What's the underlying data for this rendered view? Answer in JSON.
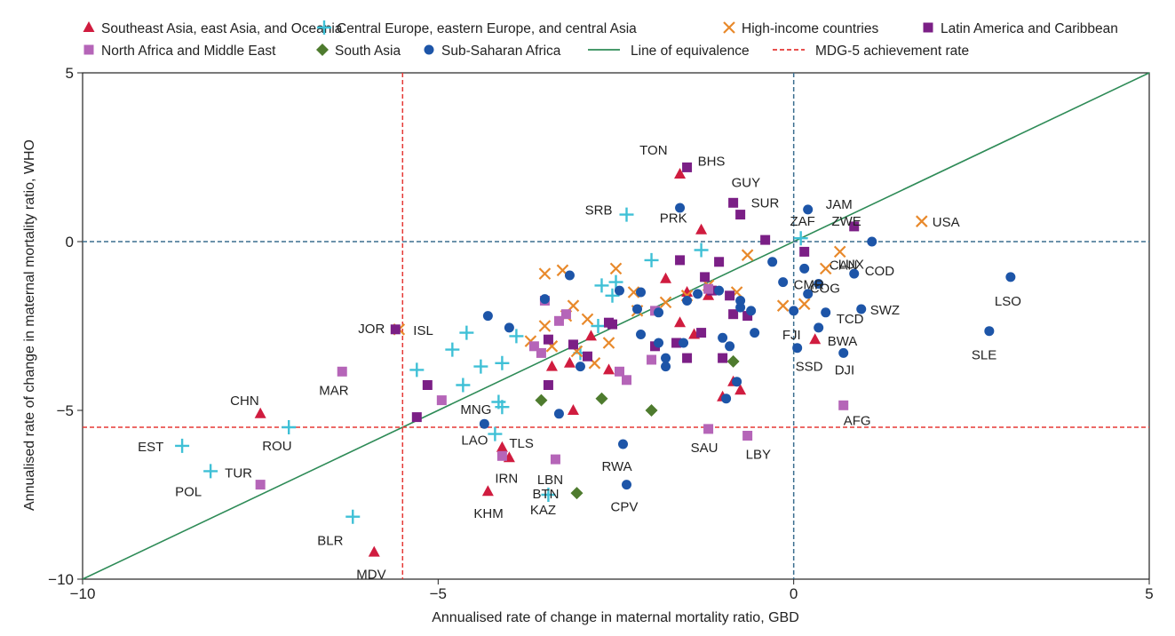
{
  "chart_data": {
    "type": "scatter",
    "xlabel": "Annualised rate of change in maternal mortality ratio, GBD",
    "ylabel": "Annualised rate of change in maternal mortality ratio, WHO",
    "xlim": [
      -10,
      5
    ],
    "ylim": [
      -10,
      5
    ],
    "x_ticks": [
      "−10",
      "−5",
      "0",
      "5"
    ],
    "y_ticks": [
      "−10",
      "−5",
      "0",
      "5"
    ],
    "grid": false,
    "legend_position": "top",
    "reference_lines": [
      {
        "name": "Line of equivalence",
        "kind": "diagonal",
        "color": "#2e8b57",
        "style": "solid"
      },
      {
        "name": "MDG-5 achievement rate",
        "kind": "vline",
        "x": -5.5,
        "color": "#e53935",
        "style": "dashed"
      },
      {
        "name": "MDG-5 achievement rate",
        "kind": "hline",
        "y": -5.5,
        "color": "#e53935",
        "style": "dashed"
      },
      {
        "name": "",
        "kind": "vline",
        "x": 0,
        "color": "#3b6e8f",
        "style": "dashed"
      },
      {
        "name": "",
        "kind": "hline",
        "y": 0,
        "color": "#3b6e8f",
        "style": "dashed"
      }
    ],
    "series": [
      {
        "name": "Southeast Asia, east Asia, and Oceania",
        "marker": "triangle",
        "color": "#d01c3f",
        "points": [
          {
            "x": -1.6,
            "y": 2.0,
            "label": "TON"
          },
          {
            "x": -1.3,
            "y": 0.35,
            "label": "PRK"
          },
          {
            "x": -7.5,
            "y": -5.1,
            "label": "CHN"
          },
          {
            "x": -5.9,
            "y": -9.2,
            "label": "MDV"
          },
          {
            "x": -4.3,
            "y": -7.4,
            "label": "KHM"
          },
          {
            "x": -4.1,
            "y": -6.1,
            "label": "TLS"
          },
          {
            "x": 0.3,
            "y": -2.9,
            "label": "FJI"
          },
          {
            "x": -3.4,
            "y": -3.7,
            "label": ""
          },
          {
            "x": -3.15,
            "y": -3.6,
            "label": ""
          },
          {
            "x": -3.1,
            "y": -5.0,
            "label": ""
          },
          {
            "x": -4.0,
            "y": -6.4,
            "label": ""
          },
          {
            "x": -1.8,
            "y": -1.1,
            "label": ""
          },
          {
            "x": -1.2,
            "y": -1.6,
            "label": ""
          },
          {
            "x": -1.6,
            "y": -2.4,
            "label": ""
          },
          {
            "x": -1.4,
            "y": -2.75,
            "label": ""
          },
          {
            "x": -2.6,
            "y": -3.8,
            "label": ""
          },
          {
            "x": -2.85,
            "y": -2.8,
            "label": ""
          },
          {
            "x": -0.85,
            "y": -4.15,
            "label": ""
          },
          {
            "x": -0.75,
            "y": -4.4,
            "label": ""
          },
          {
            "x": -1.0,
            "y": -4.6,
            "label": ""
          },
          {
            "x": -1.5,
            "y": -1.5,
            "label": ""
          }
        ]
      },
      {
        "name": "Central Europe, eastern Europe, and central Asia",
        "marker": "plus",
        "color": "#3fc0d6",
        "points": [
          {
            "x": -8.6,
            "y": -6.05,
            "label": "EST"
          },
          {
            "x": -8.2,
            "y": -6.8,
            "label": "POL"
          },
          {
            "x": -7.1,
            "y": -5.5,
            "label": "ROU"
          },
          {
            "x": -6.2,
            "y": -8.15,
            "label": "BLR"
          },
          {
            "x": -2.35,
            "y": 0.8,
            "label": "SRB"
          },
          {
            "x": -4.1,
            "y": -4.9,
            "label": "MNG"
          },
          {
            "x": -4.2,
            "y": -5.7,
            "label": "LAO"
          },
          {
            "x": -3.45,
            "y": -7.5,
            "label": "KAZ"
          },
          {
            "x": 0.1,
            "y": 0.1,
            "label": "ZAF"
          },
          {
            "x": -5.3,
            "y": -3.8,
            "label": ""
          },
          {
            "x": -4.8,
            "y": -3.2,
            "label": ""
          },
          {
            "x": -4.6,
            "y": -2.7,
            "label": ""
          },
          {
            "x": -4.4,
            "y": -3.7,
            "label": ""
          },
          {
            "x": -4.65,
            "y": -4.25,
            "label": ""
          },
          {
            "x": -4.1,
            "y": -3.6,
            "label": ""
          },
          {
            "x": -4.15,
            "y": -4.75,
            "label": ""
          },
          {
            "x": -3.9,
            "y": -2.8,
            "label": ""
          },
          {
            "x": -2.7,
            "y": -1.3,
            "label": ""
          },
          {
            "x": -2.55,
            "y": -1.6,
            "label": ""
          },
          {
            "x": -2.5,
            "y": -1.2,
            "label": ""
          },
          {
            "x": -2.0,
            "y": -0.55,
            "label": ""
          },
          {
            "x": -1.3,
            "y": -0.25,
            "label": ""
          },
          {
            "x": -2.75,
            "y": -2.5,
            "label": ""
          },
          {
            "x": -3.0,
            "y": -3.3,
            "label": ""
          }
        ]
      },
      {
        "name": "High-income countries",
        "marker": "x",
        "color": "#e8892b",
        "points": [
          {
            "x": -5.55,
            "y": -2.6,
            "label": "ISL"
          },
          {
            "x": 1.8,
            "y": 0.6,
            "label": "USA"
          },
          {
            "x": 0.65,
            "y": -0.3,
            "label": "CAN"
          },
          {
            "x": 0.45,
            "y": -0.8,
            "label": "LUX"
          },
          {
            "x": -3.5,
            "y": -0.95,
            "label": ""
          },
          {
            "x": -3.25,
            "y": -0.85,
            "label": ""
          },
          {
            "x": -2.5,
            "y": -0.8,
            "label": ""
          },
          {
            "x": -3.1,
            "y": -1.9,
            "label": ""
          },
          {
            "x": -3.5,
            "y": -2.5,
            "label": ""
          },
          {
            "x": -3.2,
            "y": -2.2,
            "label": ""
          },
          {
            "x": -2.9,
            "y": -2.3,
            "label": ""
          },
          {
            "x": -3.7,
            "y": -2.95,
            "label": ""
          },
          {
            "x": -3.4,
            "y": -3.1,
            "label": ""
          },
          {
            "x": -3.05,
            "y": -3.25,
            "label": ""
          },
          {
            "x": -2.6,
            "y": -3.0,
            "label": ""
          },
          {
            "x": -2.8,
            "y": -3.6,
            "label": ""
          },
          {
            "x": -2.25,
            "y": -1.5,
            "label": ""
          },
          {
            "x": -2.2,
            "y": -2.05,
            "label": ""
          },
          {
            "x": -1.8,
            "y": -1.8,
            "label": ""
          },
          {
            "x": -1.5,
            "y": -1.6,
            "label": ""
          },
          {
            "x": -1.2,
            "y": -1.3,
            "label": ""
          },
          {
            "x": -0.65,
            "y": -0.4,
            "label": ""
          },
          {
            "x": -0.15,
            "y": -1.9,
            "label": ""
          },
          {
            "x": 0.15,
            "y": -1.85,
            "label": ""
          },
          {
            "x": -0.8,
            "y": -1.5,
            "label": ""
          }
        ]
      },
      {
        "name": "Latin America and Caribbean",
        "marker": "square",
        "color": "#7b1f86",
        "points": [
          {
            "x": -1.5,
            "y": 2.2,
            "label": "BHS"
          },
          {
            "x": -0.85,
            "y": 1.15,
            "label": "GUY"
          },
          {
            "x": -0.75,
            "y": 0.8,
            "label": "SUR"
          },
          {
            "x": 0.85,
            "y": 0.45,
            "label": "JAM"
          },
          {
            "x": -5.15,
            "y": -4.25,
            "label": ""
          },
          {
            "x": -5.6,
            "y": -2.6,
            "label": ""
          },
          {
            "x": -5.3,
            "y": -5.2,
            "label": ""
          },
          {
            "x": -3.45,
            "y": -2.9,
            "label": ""
          },
          {
            "x": -3.45,
            "y": -4.25,
            "label": ""
          },
          {
            "x": -3.1,
            "y": -3.05,
            "label": ""
          },
          {
            "x": -2.9,
            "y": -3.4,
            "label": ""
          },
          {
            "x": -2.55,
            "y": -2.45,
            "label": ""
          },
          {
            "x": -2.6,
            "y": -2.4,
            "label": ""
          },
          {
            "x": -1.95,
            "y": -3.1,
            "label": ""
          },
          {
            "x": -1.65,
            "y": -3.0,
            "label": ""
          },
          {
            "x": -1.5,
            "y": -3.45,
            "label": ""
          },
          {
            "x": -1.6,
            "y": -0.55,
            "label": ""
          },
          {
            "x": -1.25,
            "y": -1.05,
            "label": ""
          },
          {
            "x": -1.15,
            "y": -1.45,
            "label": ""
          },
          {
            "x": -1.05,
            "y": -0.6,
            "label": ""
          },
          {
            "x": -0.9,
            "y": -1.6,
            "label": ""
          },
          {
            "x": -0.85,
            "y": -2.15,
            "label": ""
          },
          {
            "x": -0.65,
            "y": -2.2,
            "label": ""
          },
          {
            "x": -1.0,
            "y": -3.45,
            "label": ""
          },
          {
            "x": -0.4,
            "y": 0.05,
            "label": ""
          },
          {
            "x": 0.15,
            "y": -0.3,
            "label": ""
          },
          {
            "x": -1.3,
            "y": -2.7,
            "label": ""
          }
        ]
      },
      {
        "name": "North Africa and Middle East",
        "marker": "square",
        "color": "#b565b8",
        "points": [
          {
            "x": -6.35,
            "y": -3.85,
            "label": "MAR"
          },
          {
            "x": -7.5,
            "y": -7.2,
            "label": "TUR"
          },
          {
            "x": -4.1,
            "y": -6.35,
            "label": "IRN"
          },
          {
            "x": -3.35,
            "y": -6.45,
            "label": "LBN"
          },
          {
            "x": -1.2,
            "y": -5.55,
            "label": "SAU"
          },
          {
            "x": -0.65,
            "y": -5.75,
            "label": "LBY"
          },
          {
            "x": 0.7,
            "y": -4.85,
            "label": "AFG"
          },
          {
            "x": -4.95,
            "y": -4.7,
            "label": ""
          },
          {
            "x": -3.65,
            "y": -3.1,
            "label": ""
          },
          {
            "x": -3.55,
            "y": -3.3,
            "label": ""
          },
          {
            "x": -3.3,
            "y": -2.35,
            "label": ""
          },
          {
            "x": -3.2,
            "y": -2.15,
            "label": ""
          },
          {
            "x": -3.5,
            "y": -1.75,
            "label": ""
          },
          {
            "x": -2.45,
            "y": -3.85,
            "label": ""
          },
          {
            "x": -2.35,
            "y": -4.1,
            "label": ""
          },
          {
            "x": -1.95,
            "y": -2.05,
            "label": ""
          },
          {
            "x": -2.0,
            "y": -3.5,
            "label": ""
          },
          {
            "x": -1.2,
            "y": -1.4,
            "label": ""
          }
        ]
      },
      {
        "name": "South Asia",
        "marker": "diamond",
        "color": "#4e7b2e",
        "points": [
          {
            "x": -3.05,
            "y": -7.45,
            "label": "BTN"
          },
          {
            "x": -3.55,
            "y": -4.7,
            "label": ""
          },
          {
            "x": -2.7,
            "y": -4.65,
            "label": ""
          },
          {
            "x": -2.0,
            "y": -5.0,
            "label": ""
          },
          {
            "x": -0.85,
            "y": -3.55,
            "label": ""
          }
        ]
      },
      {
        "name": "Sub-Saharan Africa",
        "marker": "circle",
        "color": "#1d55a8",
        "points": [
          {
            "x": -1.6,
            "y": 1.0,
            "label": ""
          },
          {
            "x": 0.2,
            "y": 0.95,
            "label": ""
          },
          {
            "x": 1.1,
            "y": 0.0,
            "label": "ZWE"
          },
          {
            "x": 0.85,
            "y": -0.95,
            "label": "COD"
          },
          {
            "x": 0.35,
            "y": -1.25,
            "label": "COG"
          },
          {
            "x": -0.15,
            "y": -1.2,
            "label": "CMR"
          },
          {
            "x": 0.45,
            "y": -2.1,
            "label": "TCD"
          },
          {
            "x": 0.95,
            "y": -2.0,
            "label": "SWZ"
          },
          {
            "x": 0.35,
            "y": -2.55,
            "label": "BWA"
          },
          {
            "x": 0.7,
            "y": -3.3,
            "label": "DJI"
          },
          {
            "x": 0.05,
            "y": -3.15,
            "label": "SSD"
          },
          {
            "x": 3.05,
            "y": -1.05,
            "label": "LSO"
          },
          {
            "x": 2.75,
            "y": -2.65,
            "label": "SLE"
          },
          {
            "x": -2.4,
            "y": -6.0,
            "label": "RWA"
          },
          {
            "x": -2.35,
            "y": -7.2,
            "label": "CPV"
          },
          {
            "x": -4.3,
            "y": -2.2,
            "label": ""
          },
          {
            "x": -4.0,
            "y": -2.55,
            "label": ""
          },
          {
            "x": -3.5,
            "y": -1.7,
            "label": ""
          },
          {
            "x": -3.15,
            "y": -1.0,
            "label": ""
          },
          {
            "x": -2.45,
            "y": -1.45,
            "label": ""
          },
          {
            "x": -2.2,
            "y": -2.0,
            "label": ""
          },
          {
            "x": -2.15,
            "y": -1.5,
            "label": ""
          },
          {
            "x": -1.9,
            "y": -2.1,
            "label": ""
          },
          {
            "x": -2.15,
            "y": -2.75,
            "label": ""
          },
          {
            "x": -1.8,
            "y": -3.45,
            "label": ""
          },
          {
            "x": -1.5,
            "y": -1.75,
            "label": ""
          },
          {
            "x": -1.55,
            "y": -3.0,
            "label": ""
          },
          {
            "x": -1.35,
            "y": -1.55,
            "label": ""
          },
          {
            "x": -1.8,
            "y": -3.7,
            "label": ""
          },
          {
            "x": -1.05,
            "y": -1.45,
            "label": ""
          },
          {
            "x": -1.0,
            "y": -2.85,
            "label": ""
          },
          {
            "x": -0.9,
            "y": -3.1,
            "label": ""
          },
          {
            "x": -0.95,
            "y": -4.65,
            "label": ""
          },
          {
            "x": -0.75,
            "y": -1.95,
            "label": ""
          },
          {
            "x": -0.6,
            "y": -2.05,
            "label": ""
          },
          {
            "x": -0.55,
            "y": -2.7,
            "label": ""
          },
          {
            "x": -0.75,
            "y": -1.75,
            "label": ""
          },
          {
            "x": -0.3,
            "y": -0.6,
            "label": ""
          },
          {
            "x": 0.15,
            "y": -0.8,
            "label": ""
          },
          {
            "x": 0.0,
            "y": -2.05,
            "label": ""
          },
          {
            "x": 0.2,
            "y": -1.55,
            "label": ""
          },
          {
            "x": -3.3,
            "y": -5.1,
            "label": ""
          },
          {
            "x": -4.35,
            "y": -5.4,
            "label": ""
          },
          {
            "x": -0.8,
            "y": -4.15,
            "label": ""
          },
          {
            "x": -3.0,
            "y": -3.7,
            "label": ""
          },
          {
            "x": -1.9,
            "y": -3.0,
            "label": ""
          }
        ]
      }
    ],
    "annotations": [
      {
        "label": "JOR",
        "x": -5.6,
        "y": -2.6
      }
    ]
  }
}
